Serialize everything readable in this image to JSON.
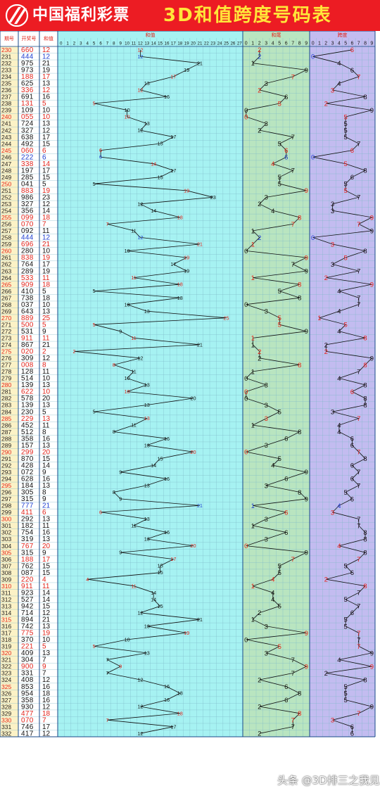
{
  "header": {
    "logo_text": "中国福利彩票",
    "title": "3D和值跨度号码表"
  },
  "watermark": "头条 @3D排三之我见",
  "colors": {
    "header_bg": "#ec1c23",
    "title": "#ffe63a",
    "red": "#e2231a",
    "blue": "#1f3fd0",
    "black": "#111111",
    "bg_cyan": "#a6f2f2",
    "bg_green": "#b9e5c0",
    "bg_purple": "#c3bcf0",
    "bg_left": "#ffffff",
    "bg_period": "#fcf2c6"
  },
  "chart_data": {
    "type": "table",
    "column_headers": {
      "period": "期号",
      "draw": "开奖号",
      "sum": "和值",
      "sum_zone": "和值",
      "tail_zone": "和尾",
      "span_zone": "跨度"
    },
    "axes": {
      "sum": [
        "0",
        "1",
        "2",
        "3",
        "4",
        "5",
        "6",
        "7",
        "8",
        "9",
        "10",
        "11",
        "12",
        "13",
        "14",
        "15",
        "16",
        "17",
        "18",
        "19",
        "20",
        "21",
        "22",
        "23",
        "24",
        "25",
        "26",
        "27"
      ],
      "tail": [
        "0",
        "1",
        "2",
        "3",
        "4",
        "5",
        "6",
        "7",
        "8",
        "9"
      ],
      "span": [
        "0",
        "1",
        "2",
        "3",
        "4",
        "5",
        "6",
        "7",
        "8",
        "9"
      ]
    },
    "periods": [
      "230",
      "231",
      "232",
      "233",
      "234",
      "235",
      "236",
      "237",
      "238",
      "239",
      "240",
      "241",
      "242",
      "243",
      "244",
      "245",
      "246",
      "247",
      "248",
      "249",
      "250",
      "251",
      "252",
      "253",
      "254",
      "255",
      "256",
      "257",
      "258",
      "259",
      "260",
      "261",
      "262",
      "263",
      "264",
      "265",
      "266",
      "267",
      "268",
      "269",
      "270",
      "271",
      "272",
      "273",
      "274",
      "275",
      "276",
      "277",
      "278",
      "279",
      "280",
      "281",
      "282",
      "283",
      "284",
      "285",
      "286",
      "287",
      "288",
      "289",
      "290",
      "291",
      "292",
      "293",
      "294",
      "295",
      "296",
      "297",
      "298",
      "299",
      "300",
      "301",
      "302",
      "303",
      "304",
      "305",
      "306",
      "307",
      "308",
      "309",
      "310",
      "311",
      "312",
      "313",
      "314",
      "315",
      "316",
      "317",
      "318",
      "319",
      "320",
      "321",
      "322",
      "323",
      "324",
      "325",
      "326",
      "327",
      "328",
      "329",
      "330",
      "331",
      "332"
    ],
    "draws": [
      "660",
      "444",
      "975",
      "973",
      "188",
      "625",
      "336",
      "691",
      "131",
      "109",
      "055",
      "724",
      "327",
      "638",
      "492",
      "060",
      "222",
      "338",
      "197",
      "285",
      "041",
      "883",
      "986",
      "327",
      "356",
      "099",
      "070",
      "092",
      "444",
      "696",
      "280",
      "838",
      "764",
      "289",
      "533",
      "909",
      "410",
      "738",
      "037",
      "643",
      "889",
      "500",
      "531",
      "911",
      "867",
      "020",
      "309",
      "008",
      "128",
      "514",
      "139",
      "622",
      "578",
      "139",
      "230",
      "229",
      "452",
      "512",
      "358",
      "157",
      "299",
      "870",
      "428",
      "072",
      "628",
      "184",
      "305",
      "315",
      "777",
      "411",
      "292",
      "182",
      "754",
      "319",
      "767",
      "315",
      "188",
      "762",
      "087",
      "220",
      "911",
      "923",
      "527",
      "942",
      "714",
      "894",
      "742",
      "775",
      "370",
      "221",
      "409",
      "304",
      "900",
      "331",
      "408",
      "853",
      "954",
      "358",
      "930",
      "477",
      "070",
      "746",
      "417"
    ],
    "sums": [
      12,
      12,
      21,
      19,
      17,
      13,
      12,
      16,
      5,
      10,
      10,
      13,
      12,
      17,
      15,
      6,
      6,
      14,
      17,
      15,
      5,
      19,
      23,
      12,
      14,
      18,
      7,
      11,
      12,
      21,
      10,
      19,
      17,
      19,
      11,
      18,
      5,
      18,
      10,
      13,
      25,
      5,
      9,
      11,
      21,
      2,
      12,
      8,
      11,
      10,
      13,
      10,
      20,
      13,
      5,
      13,
      11,
      8,
      16,
      13,
      20,
      15,
      14,
      9,
      16,
      13,
      8,
      9,
      21,
      6,
      13,
      11,
      16,
      13,
      20,
      9,
      17,
      15,
      15,
      4,
      11,
      14,
      14,
      15,
      12,
      21,
      13,
      19,
      10,
      5,
      13,
      7,
      9,
      7,
      12,
      16,
      18,
      16,
      12,
      18,
      7,
      17,
      12
    ],
    "tails": [
      2,
      2,
      1,
      9,
      7,
      3,
      2,
      6,
      5,
      0,
      0,
      3,
      2,
      7,
      5,
      6,
      6,
      4,
      7,
      5,
      5,
      9,
      3,
      2,
      4,
      8,
      7,
      1,
      2,
      1,
      0,
      9,
      7,
      9,
      1,
      8,
      5,
      8,
      0,
      3,
      5,
      5,
      9,
      1,
      1,
      2,
      2,
      8,
      1,
      0,
      3,
      0,
      0,
      3,
      5,
      3,
      1,
      8,
      6,
      3,
      0,
      5,
      4,
      9,
      6,
      3,
      8,
      9,
      1,
      6,
      3,
      1,
      6,
      3,
      0,
      9,
      7,
      5,
      5,
      4,
      1,
      4,
      4,
      5,
      2,
      1,
      3,
      9,
      0,
      5,
      3,
      7,
      9,
      7,
      2,
      6,
      8,
      6,
      2,
      8,
      7,
      7,
      2
    ],
    "spans": [
      6,
      0,
      4,
      6,
      7,
      4,
      3,
      8,
      2,
      9,
      5,
      5,
      5,
      5,
      7,
      6,
      0,
      5,
      8,
      6,
      5,
      5,
      7,
      3,
      3,
      9,
      7,
      9,
      0,
      3,
      8,
      5,
      3,
      7,
      2,
      9,
      4,
      7,
      7,
      4,
      1,
      5,
      4,
      8,
      2,
      2,
      9,
      8,
      7,
      4,
      8,
      6,
      8,
      8,
      3,
      7,
      4,
      4,
      6,
      6,
      7,
      8,
      6,
      7,
      6,
      7,
      5,
      6,
      4,
      3,
      7,
      7,
      8,
      8,
      4,
      8,
      7,
      5,
      6,
      2,
      8,
      7,
      5,
      7,
      6,
      5,
      5,
      7,
      7,
      7,
      9,
      4,
      9,
      2,
      8,
      5,
      5,
      5,
      9,
      7,
      3,
      6,
      6
    ],
    "red_periods": [
      "230",
      "240",
      "245",
      "250",
      "255",
      "260",
      "265",
      "270",
      "275",
      "280",
      "285",
      "290",
      "295",
      "300",
      "305",
      "310",
      "315",
      "320",
      "325",
      "330"
    ],
    "red_draws": [
      "660",
      "188",
      "336",
      "131",
      "055",
      "060",
      "338",
      "883",
      "099",
      "070",
      "696",
      "838",
      "533",
      "909",
      "889",
      "500",
      "911",
      "020",
      "008",
      "622",
      "229",
      "299",
      "411",
      "767",
      "188",
      "220",
      "911",
      "775",
      "221",
      "900",
      "477",
      "070"
    ],
    "blue_draws": [
      "444",
      "222",
      "444",
      "777"
    ]
  }
}
